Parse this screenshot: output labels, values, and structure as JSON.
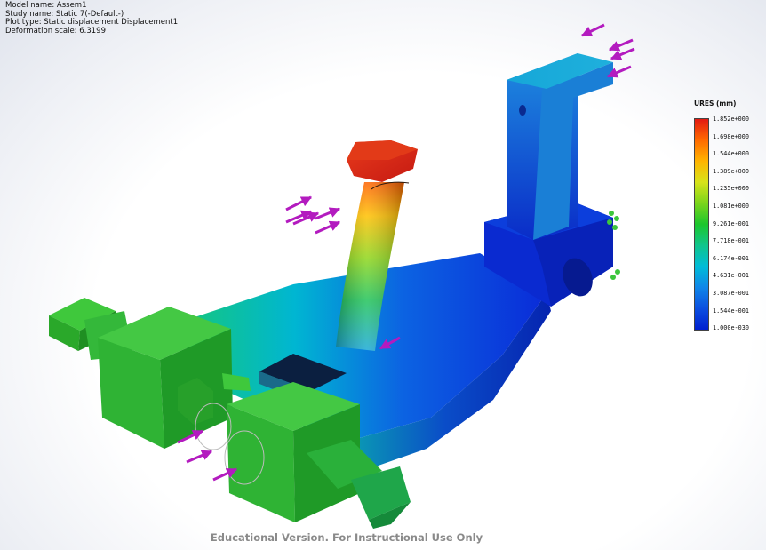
{
  "info": {
    "model_name": "Model name: Assem1",
    "study_name": "Study name: Static 7(-Default-)",
    "plot_type": "Plot type: Static displacement Displacement1",
    "deformation_scale": "Deformation scale: 6.3199"
  },
  "legend": {
    "title": "URES (mm)",
    "ticks": [
      "1.852e+000",
      "1.698e+000",
      "1.544e+000",
      "1.389e+000",
      "1.235e+000",
      "1.081e+000",
      "9.261e-001",
      "7.718e-001",
      "6.174e-001",
      "4.631e-001",
      "3.087e-001",
      "1.544e-001",
      "1.000e-030"
    ]
  },
  "watermark": "Educational Version. For Instructional Use Only",
  "colors": {
    "max": "#e21a12",
    "mid": "#1bc62d",
    "min": "#0020cf",
    "load_arrow": "#b31bbf",
    "fixture_arrow": "#3cc63c"
  }
}
